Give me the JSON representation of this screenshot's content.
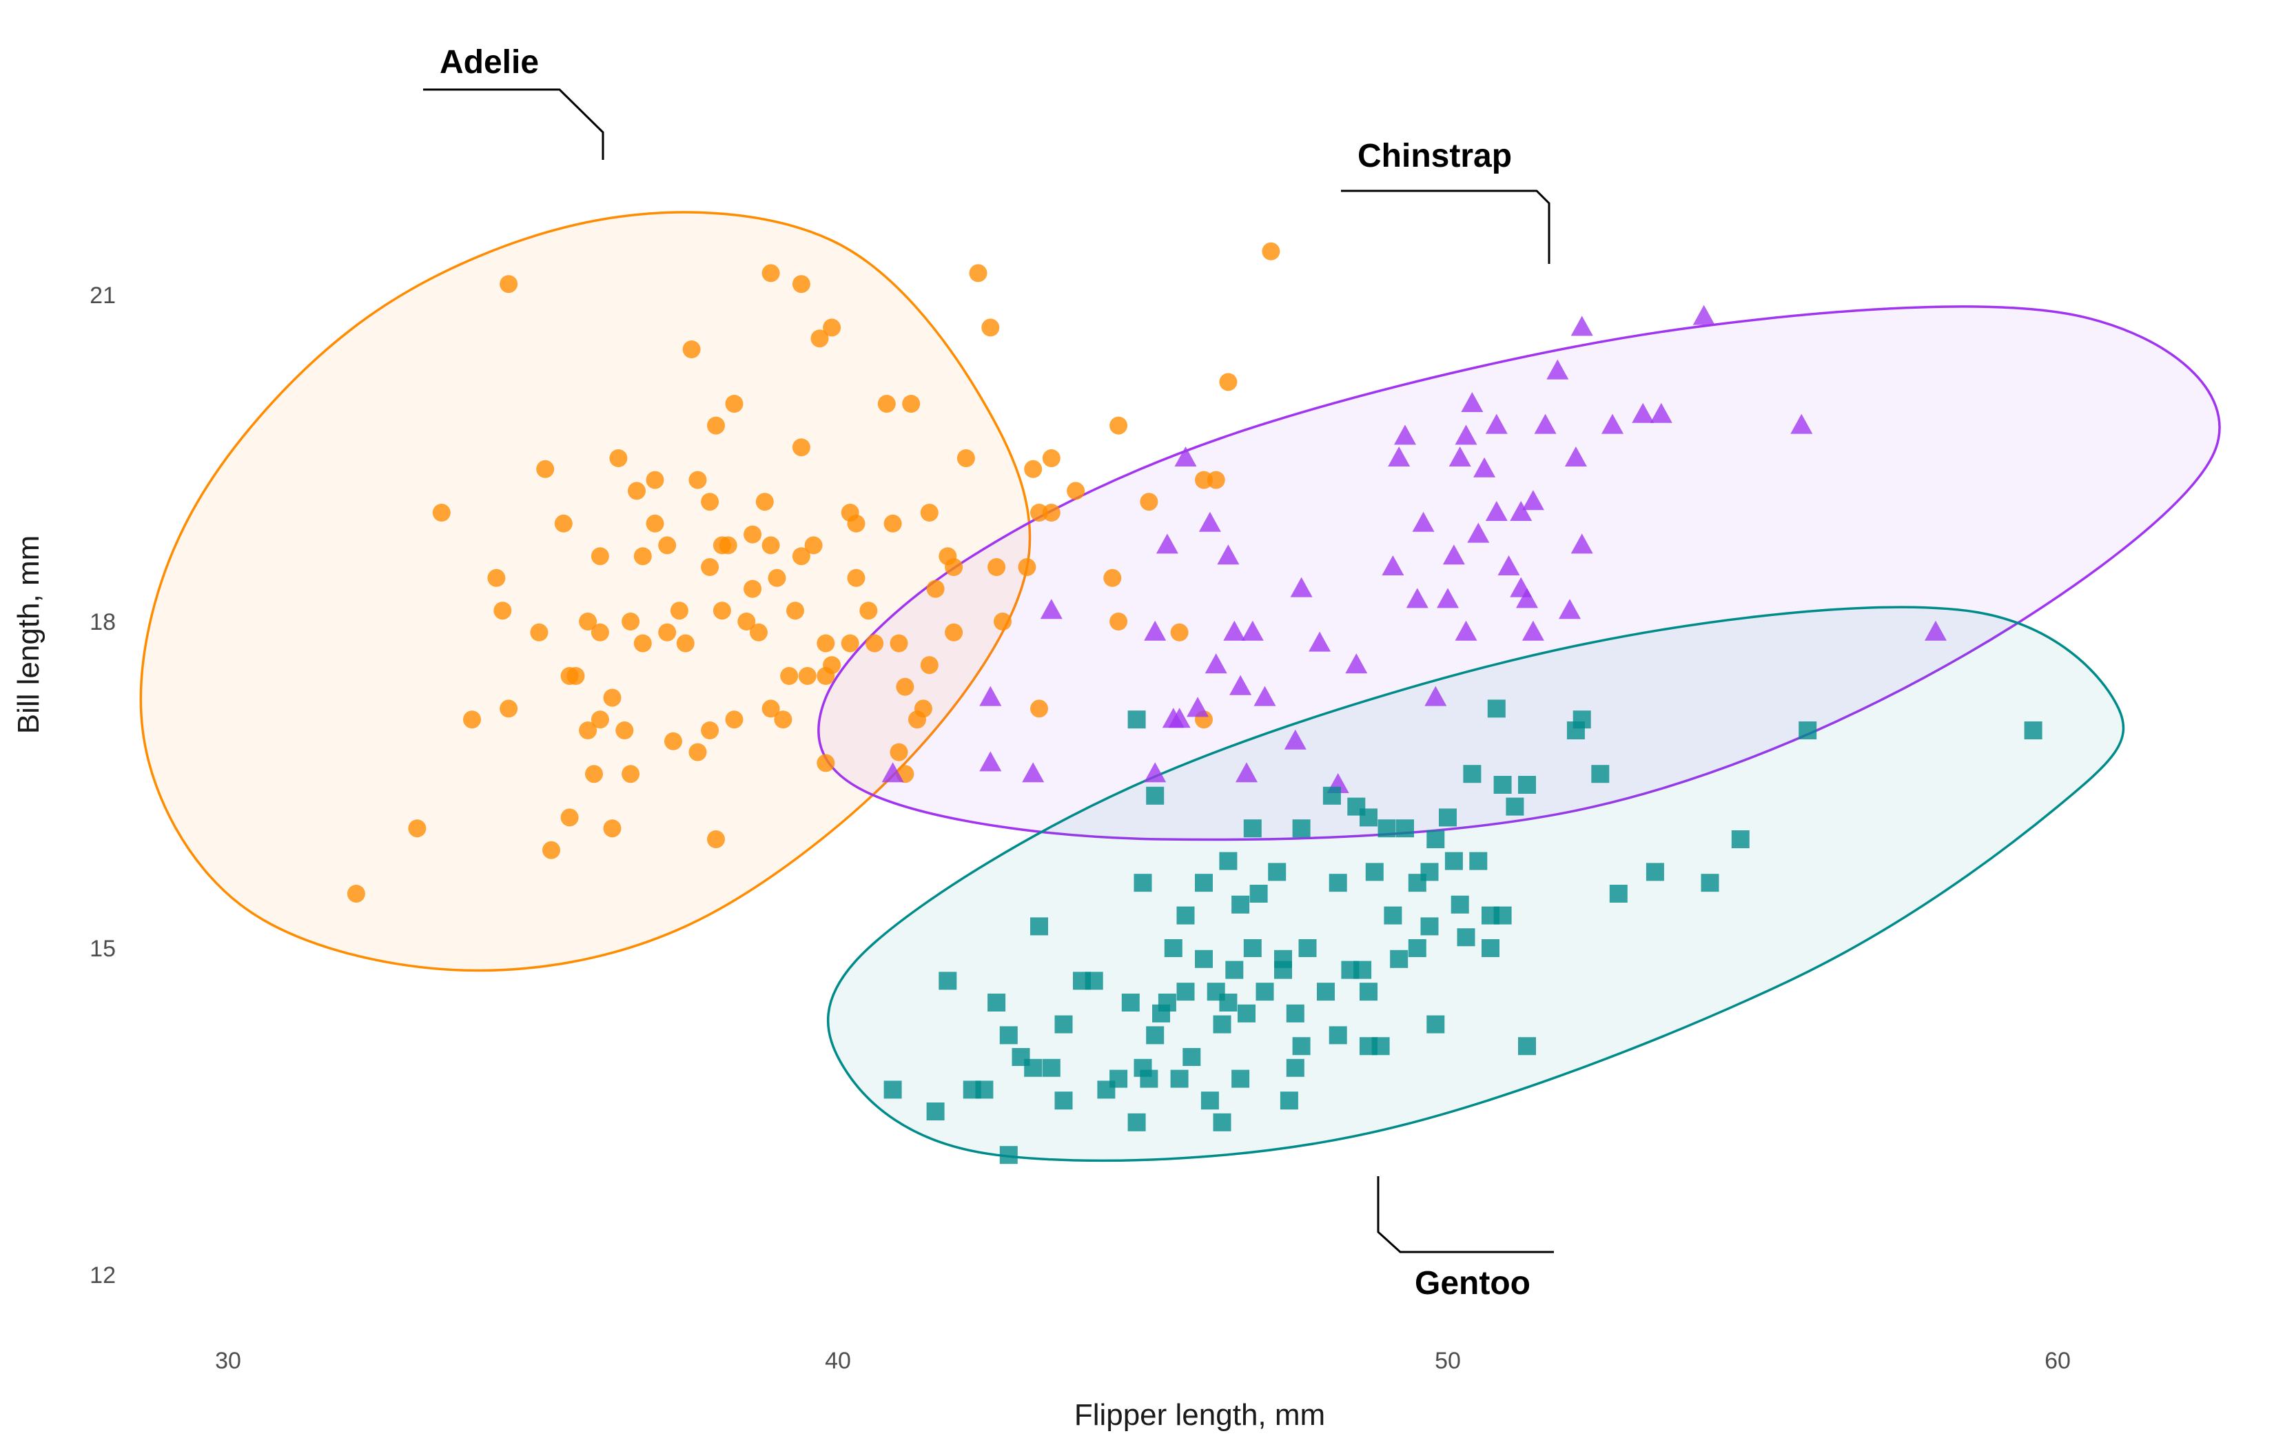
{
  "chart_data": {
    "type": "scatter",
    "title": "",
    "xlabel": "Flipper length, mm",
    "ylabel": "Bill length, mm",
    "xlim": [
      28.5,
      62.6
    ],
    "ylim": [
      11.3,
      22.4
    ],
    "xticks": [
      30,
      40,
      50,
      60
    ],
    "yticks": [
      12,
      15,
      18,
      21
    ],
    "grid": false,
    "legend": "none",
    "series": [
      {
        "name": "Adelie",
        "color": "#FF8C00",
        "marker": "circle",
        "ellipse": [
          [
            42.3,
            20.1
          ],
          [
            39.9,
            21.5
          ],
          [
            36.2,
            21.7
          ],
          [
            32.3,
            20.8
          ],
          [
            29.4,
            19.0
          ],
          [
            28.6,
            17.0
          ],
          [
            30.2,
            15.4
          ],
          [
            33.7,
            14.8
          ],
          [
            37.5,
            15.2
          ],
          [
            41.1,
            16.7
          ],
          [
            43.1,
            18.5
          ],
          [
            42.3,
            20.1
          ]
        ],
        "points": [
          [
            32.1,
            15.5
          ],
          [
            33.1,
            16.1
          ],
          [
            34.0,
            17.1
          ],
          [
            33.5,
            19.0
          ],
          [
            34.4,
            18.4
          ],
          [
            34.5,
            18.1
          ],
          [
            34.6,
            17.2
          ],
          [
            34.6,
            21.1
          ],
          [
            35.1,
            17.9
          ],
          [
            35.2,
            19.4
          ],
          [
            35.3,
            15.9
          ],
          [
            35.5,
            18.9
          ],
          [
            35.6,
            16.2
          ],
          [
            35.6,
            17.5
          ],
          [
            35.7,
            17.5
          ],
          [
            35.9,
            18.0
          ],
          [
            35.9,
            17.0
          ],
          [
            36.0,
            16.6
          ],
          [
            36.1,
            17.1
          ],
          [
            36.1,
            17.9
          ],
          [
            36.1,
            18.6
          ],
          [
            36.3,
            16.1
          ],
          [
            36.3,
            17.3
          ],
          [
            36.4,
            19.5
          ],
          [
            36.5,
            17.0
          ],
          [
            36.6,
            16.6
          ],
          [
            36.6,
            18.0
          ],
          [
            36.7,
            19.2
          ],
          [
            36.8,
            18.6
          ],
          [
            36.8,
            17.8
          ],
          [
            37.0,
            18.9
          ],
          [
            37.0,
            19.3
          ],
          [
            37.2,
            18.7
          ],
          [
            37.3,
            16.9
          ],
          [
            37.4,
            18.1
          ],
          [
            37.5,
            17.8
          ],
          [
            37.6,
            20.5
          ],
          [
            37.7,
            16.8
          ],
          [
            37.7,
            19.3
          ],
          [
            37.9,
            17.0
          ],
          [
            37.9,
            18.5
          ],
          [
            37.9,
            19.1
          ],
          [
            38.0,
            19.8
          ],
          [
            38.0,
            16.0
          ],
          [
            38.1,
            18.7
          ],
          [
            38.1,
            18.1
          ],
          [
            38.2,
            18.7
          ],
          [
            38.3,
            20.0
          ],
          [
            38.3,
            17.1
          ],
          [
            38.5,
            18.0
          ],
          [
            38.6,
            18.3
          ],
          [
            38.7,
            17.9
          ],
          [
            38.8,
            19.1
          ],
          [
            38.9,
            18.7
          ],
          [
            38.9,
            17.2
          ],
          [
            38.9,
            21.2
          ],
          [
            39.0,
            18.4
          ],
          [
            39.1,
            17.1
          ],
          [
            39.2,
            17.5
          ],
          [
            39.3,
            18.1
          ],
          [
            39.4,
            19.6
          ],
          [
            39.4,
            21.1
          ],
          [
            39.4,
            18.6
          ],
          [
            39.6,
            18.7
          ],
          [
            39.7,
            20.6
          ],
          [
            39.8,
            17.5
          ],
          [
            39.8,
            16.7
          ],
          [
            39.8,
            17.8
          ],
          [
            39.9,
            20.7
          ],
          [
            39.9,
            17.6
          ],
          [
            40.2,
            17.8
          ],
          [
            40.3,
            18.9
          ],
          [
            40.3,
            18.4
          ],
          [
            40.2,
            19.0
          ],
          [
            40.5,
            18.1
          ],
          [
            40.6,
            17.8
          ],
          [
            40.8,
            20.0
          ],
          [
            40.9,
            18.9
          ],
          [
            41.0,
            17.8
          ],
          [
            41.0,
            16.8
          ],
          [
            41.1,
            17.4
          ],
          [
            41.1,
            16.6
          ],
          [
            41.2,
            20.0
          ],
          [
            41.4,
            17.2
          ],
          [
            41.5,
            17.6
          ],
          [
            41.5,
            19.0
          ],
          [
            41.6,
            18.3
          ],
          [
            41.8,
            18.6
          ],
          [
            41.9,
            17.9
          ],
          [
            41.9,
            18.5
          ],
          [
            42.1,
            19.5
          ],
          [
            42.3,
            21.2
          ],
          [
            42.5,
            20.7
          ],
          [
            42.6,
            18.5
          ],
          [
            42.7,
            18.0
          ],
          [
            43.1,
            18.5
          ],
          [
            43.2,
            19.4
          ],
          [
            43.3,
            17.2
          ],
          [
            43.3,
            19.0
          ],
          [
            43.5,
            19.5
          ],
          [
            43.5,
            19.0
          ],
          [
            43.9,
            19.2
          ],
          [
            44.5,
            18.4
          ],
          [
            44.6,
            19.8
          ],
          [
            44.6,
            18.0
          ],
          [
            45.1,
            19.1
          ],
          [
            45.6,
            17.9
          ],
          [
            46.0,
            17.1
          ],
          [
            46.0,
            19.3
          ],
          [
            46.2,
            19.3
          ],
          [
            46.4,
            20.2
          ],
          [
            47.1,
            21.4
          ],
          [
            41.3,
            17.1
          ],
          [
            39.5,
            17.5
          ],
          [
            37.2,
            17.9
          ],
          [
            38.6,
            18.8
          ]
        ]
      },
      {
        "name": "Chinstrap",
        "color": "#A034F0",
        "marker": "triangle",
        "ellipse": [
          [
            62.6,
            19.6
          ],
          [
            60.4,
            20.8
          ],
          [
            54.0,
            20.7
          ],
          [
            46.9,
            19.8
          ],
          [
            42.2,
            18.6
          ],
          [
            39.8,
            17.3
          ],
          [
            40.6,
            16.4
          ],
          [
            45.3,
            16.0
          ],
          [
            52.4,
            16.3
          ],
          [
            58.5,
            17.7
          ],
          [
            62.6,
            19.6
          ]
        ],
        "points": [
          [
            40.9,
            16.6
          ],
          [
            42.5,
            17.3
          ],
          [
            42.5,
            16.7
          ],
          [
            43.2,
            16.6
          ],
          [
            43.5,
            18.1
          ],
          [
            45.2,
            16.6
          ],
          [
            45.2,
            17.9
          ],
          [
            45.4,
            18.7
          ],
          [
            45.5,
            17.1
          ],
          [
            45.6,
            17.1
          ],
          [
            45.7,
            19.5
          ],
          [
            45.9,
            17.2
          ],
          [
            46.1,
            18.9
          ],
          [
            46.2,
            17.6
          ],
          [
            46.4,
            18.6
          ],
          [
            46.5,
            17.9
          ],
          [
            46.6,
            17.4
          ],
          [
            46.7,
            16.6
          ],
          [
            46.8,
            17.9
          ],
          [
            47.0,
            17.3
          ],
          [
            47.5,
            16.9
          ],
          [
            47.6,
            18.3
          ],
          [
            48.2,
            16.5
          ],
          [
            48.5,
            17.6
          ],
          [
            49.2,
            19.5
          ],
          [
            49.3,
            19.7
          ],
          [
            49.5,
            18.2
          ],
          [
            49.6,
            18.9
          ],
          [
            49.8,
            17.3
          ],
          [
            50.0,
            18.2
          ],
          [
            50.1,
            18.6
          ],
          [
            50.2,
            19.5
          ],
          [
            50.3,
            19.7
          ],
          [
            50.4,
            20.0
          ],
          [
            50.5,
            18.8
          ],
          [
            50.6,
            19.4
          ],
          [
            50.8,
            19.0
          ],
          [
            50.8,
            19.8
          ],
          [
            51.0,
            18.5
          ],
          [
            51.2,
            19.0
          ],
          [
            51.3,
            18.2
          ],
          [
            51.4,
            19.1
          ],
          [
            51.6,
            19.8
          ],
          [
            51.8,
            20.3
          ],
          [
            52.1,
            19.5
          ],
          [
            52.2,
            18.7
          ],
          [
            52.2,
            20.7
          ],
          [
            52.7,
            19.8
          ],
          [
            53.2,
            19.9
          ],
          [
            53.5,
            19.9
          ],
          [
            54.2,
            20.8
          ],
          [
            55.8,
            19.8
          ],
          [
            58.0,
            17.9
          ],
          [
            47.9,
            17.8
          ],
          [
            49.1,
            18.5
          ],
          [
            50.3,
            17.9
          ],
          [
            51.4,
            17.9
          ],
          [
            52.0,
            18.1
          ],
          [
            51.2,
            18.3
          ]
        ]
      },
      {
        "name": "Gentoo",
        "color": "#008B8B",
        "marker": "square",
        "ellipse": [
          [
            61.0,
            17.2
          ],
          [
            58.5,
            18.1
          ],
          [
            52.3,
            17.8
          ],
          [
            45.3,
            16.6
          ],
          [
            40.5,
            15.0
          ],
          [
            40.1,
            13.9
          ],
          [
            42.6,
            13.1
          ],
          [
            48.7,
            13.3
          ],
          [
            55.6,
            14.7
          ],
          [
            60.0,
            16.3
          ],
          [
            61.0,
            17.2
          ]
        ],
        "points": [
          [
            40.9,
            13.7
          ],
          [
            41.6,
            13.5
          ],
          [
            41.8,
            14.7
          ],
          [
            42.2,
            13.7
          ],
          [
            42.4,
            13.7
          ],
          [
            42.8,
            13.1
          ],
          [
            42.6,
            14.5
          ],
          [
            42.8,
            14.2
          ],
          [
            43.0,
            14.0
          ],
          [
            43.2,
            13.9
          ],
          [
            43.3,
            15.2
          ],
          [
            43.5,
            13.9
          ],
          [
            43.7,
            13.6
          ],
          [
            44.2,
            14.7
          ],
          [
            44.4,
            13.7
          ],
          [
            44.6,
            13.8
          ],
          [
            44.8,
            14.5
          ],
          [
            45.0,
            13.9
          ],
          [
            45.0,
            15.6
          ],
          [
            45.1,
            13.8
          ],
          [
            45.2,
            14.2
          ],
          [
            45.3,
            14.4
          ],
          [
            45.4,
            14.5
          ],
          [
            45.5,
            15.0
          ],
          [
            45.6,
            13.8
          ],
          [
            45.7,
            14.6
          ],
          [
            45.8,
            14.0
          ],
          [
            46.0,
            15.6
          ],
          [
            46.1,
            13.6
          ],
          [
            46.2,
            14.6
          ],
          [
            46.3,
            14.3
          ],
          [
            46.4,
            14.5
          ],
          [
            46.5,
            14.8
          ],
          [
            46.6,
            15.4
          ],
          [
            46.7,
            14.4
          ],
          [
            46.8,
            15.0
          ],
          [
            46.9,
            15.5
          ],
          [
            47.0,
            14.6
          ],
          [
            47.2,
            15.7
          ],
          [
            47.4,
            13.6
          ],
          [
            47.5,
            14.4
          ],
          [
            47.6,
            14.1
          ],
          [
            47.7,
            15.0
          ],
          [
            48.0,
            14.6
          ],
          [
            48.2,
            15.6
          ],
          [
            48.4,
            14.8
          ],
          [
            48.5,
            16.3
          ],
          [
            48.7,
            14.1
          ],
          [
            48.8,
            15.7
          ],
          [
            49.0,
            16.1
          ],
          [
            49.3,
            16.1
          ],
          [
            49.5,
            15.6
          ],
          [
            49.7,
            15.2
          ],
          [
            49.8,
            16.0
          ],
          [
            50.0,
            16.2
          ],
          [
            50.2,
            15.4
          ],
          [
            50.5,
            15.8
          ],
          [
            50.7,
            15.0
          ],
          [
            51.1,
            16.3
          ],
          [
            51.3,
            14.1
          ],
          [
            52.5,
            16.6
          ],
          [
            52.8,
            15.5
          ],
          [
            53.4,
            15.7
          ],
          [
            54.3,
            15.6
          ],
          [
            54.8,
            16.0
          ],
          [
            55.9,
            17.0
          ],
          [
            59.6,
            17.0
          ],
          [
            45.2,
            16.4
          ],
          [
            46.8,
            16.1
          ],
          [
            48.1,
            16.4
          ],
          [
            50.4,
            16.6
          ],
          [
            50.9,
            16.5
          ],
          [
            51.3,
            16.5
          ],
          [
            52.1,
            17.0
          ],
          [
            52.2,
            17.1
          ],
          [
            50.8,
            17.2
          ],
          [
            44.9,
            17.1
          ],
          [
            46.4,
            15.8
          ],
          [
            49.8,
            14.3
          ],
          [
            50.7,
            15.3
          ],
          [
            48.6,
            14.8
          ],
          [
            47.3,
            14.9
          ],
          [
            45.7,
            15.3
          ],
          [
            44.0,
            14.7
          ],
          [
            43.7,
            14.3
          ],
          [
            48.2,
            14.2
          ],
          [
            48.9,
            14.1
          ],
          [
            47.5,
            13.9
          ],
          [
            49.2,
            14.9
          ],
          [
            49.1,
            15.3
          ],
          [
            46.0,
            14.9
          ],
          [
            44.9,
            13.4
          ],
          [
            46.6,
            13.8
          ],
          [
            47.3,
            14.8
          ],
          [
            49.7,
            15.7
          ],
          [
            50.1,
            15.8
          ],
          [
            49.5,
            15.0
          ],
          [
            48.7,
            16.2
          ],
          [
            47.6,
            16.1
          ],
          [
            48.7,
            14.6
          ],
          [
            46.3,
            13.4
          ],
          [
            50.3,
            15.1
          ],
          [
            50.9,
            15.3
          ]
        ]
      }
    ],
    "annotations": [
      {
        "text": "Adelie",
        "series": "Adelie"
      },
      {
        "text": "Chinstrap",
        "series": "Chinstrap"
      },
      {
        "text": "Gentoo",
        "series": "Gentoo"
      }
    ]
  }
}
